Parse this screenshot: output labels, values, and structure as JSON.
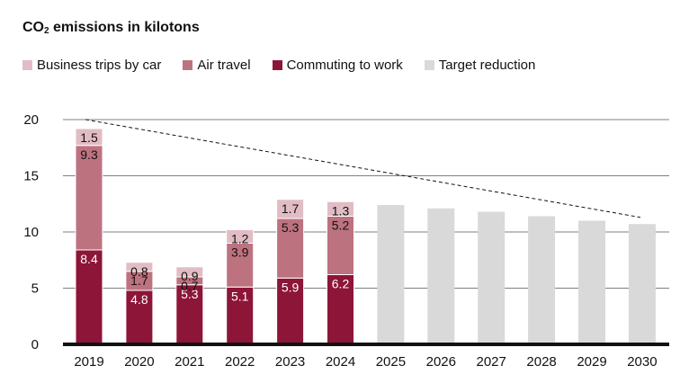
{
  "chart_data": {
    "type": "bar",
    "stacked": true,
    "title_prefix": "CO",
    "title_sub": "2",
    "title_suffix": " emissions in kilotons",
    "categories": [
      "2019",
      "2020",
      "2021",
      "2022",
      "2023",
      "2024",
      "2025",
      "2026",
      "2027",
      "2028",
      "2029",
      "2030"
    ],
    "series": [
      {
        "name": "Business trips by car",
        "color": "#e2bcc4",
        "values": [
          1.5,
          0.8,
          0.9,
          1.2,
          1.7,
          1.3,
          null,
          null,
          null,
          null,
          null,
          null
        ]
      },
      {
        "name": "Air travel",
        "color": "#bd7280",
        "values": [
          9.3,
          1.7,
          0.7,
          3.9,
          5.3,
          5.2,
          null,
          null,
          null,
          null,
          null,
          null
        ]
      },
      {
        "name": "Commuting to work",
        "color": "#8c1538",
        "values": [
          8.4,
          4.8,
          5.3,
          5.1,
          5.9,
          6.2,
          null,
          null,
          null,
          null,
          null,
          null
        ]
      },
      {
        "name": "Target reduction",
        "color": "#d9d9d9",
        "values": [
          null,
          null,
          null,
          null,
          null,
          null,
          12.4,
          12.1,
          11.8,
          11.4,
          11.0,
          10.7
        ]
      }
    ],
    "target_line": {
      "from": {
        "x": "2019",
        "y": 20
      },
      "to": {
        "x": "2030",
        "y": 11.3
      }
    },
    "ylim": [
      0,
      20
    ],
    "yticks": [
      0,
      5,
      10,
      15,
      20
    ],
    "grid": true,
    "legend_position": "top-left"
  }
}
